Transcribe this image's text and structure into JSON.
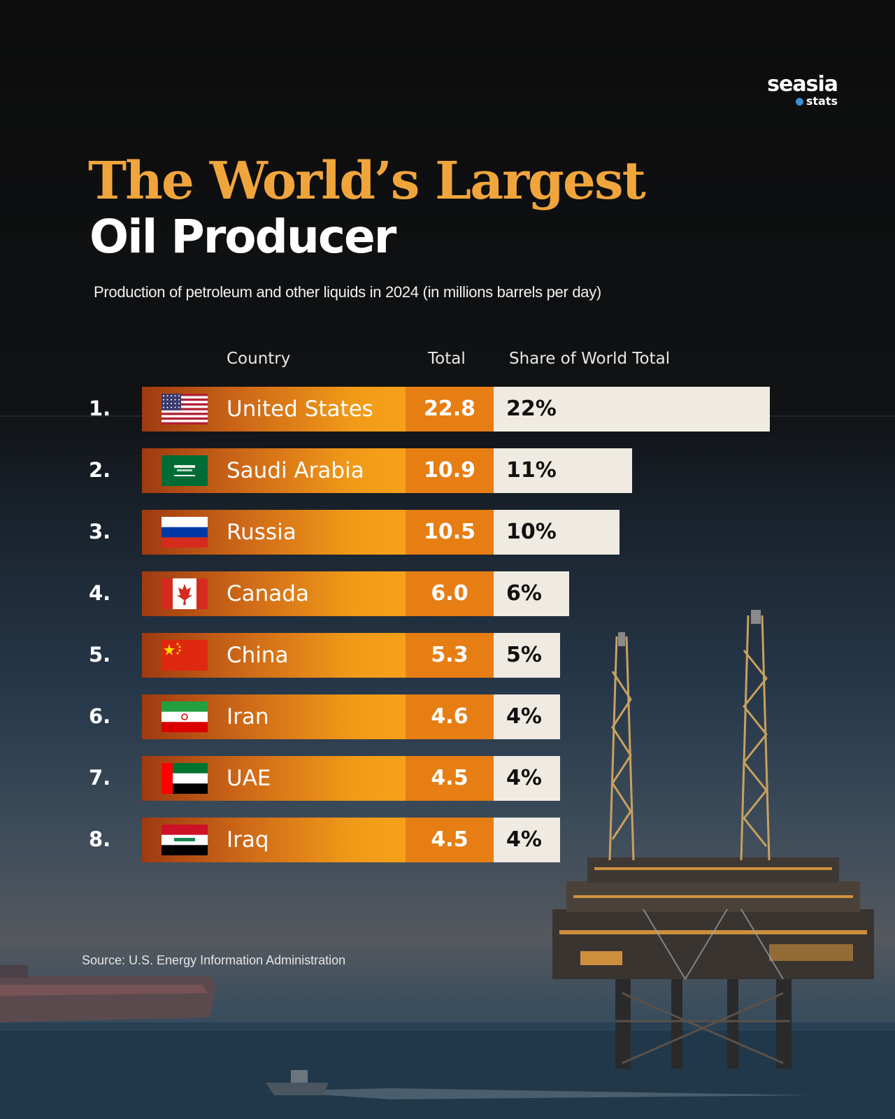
{
  "brand": {
    "name": "seasia",
    "sub": "stats"
  },
  "colors": {
    "title_accent": "#f0a53c",
    "bar_start": "#9e3a10",
    "bar_end": "#f7a11a",
    "total_bg": "#e67e14",
    "share_bg": "#efebe2"
  },
  "headers": {
    "country": "Country",
    "total": "Total",
    "share": "Share of World Total"
  },
  "source": "Source: U.S. Energy Information Administration",
  "chart_data": {
    "type": "table",
    "title": "The World’s Largest",
    "title_line2": "Oil Producer",
    "subtitle": "Production of petroleum and other liquids in 2024 (in millions barrels per day)",
    "columns": [
      "Country",
      "Total",
      "Share of World Total"
    ],
    "rows": [
      {
        "rank": "1.",
        "country": "United States",
        "flag": "us-flag",
        "total": "22.8",
        "share_label": "22%",
        "share": 22
      },
      {
        "rank": "2.",
        "country": "Saudi Arabia",
        "flag": "saudi-arabia-flag",
        "total": "10.9",
        "share_label": "11%",
        "share": 11
      },
      {
        "rank": "3.",
        "country": "Russia",
        "flag": "russia-flag",
        "total": "10.5",
        "share_label": "10%",
        "share": 10
      },
      {
        "rank": "4.",
        "country": "Canada",
        "flag": "canada-flag",
        "total": "6.0",
        "share_label": "6%",
        "share": 6
      },
      {
        "rank": "5.",
        "country": "China",
        "flag": "china-flag",
        "total": "5.3",
        "share_label": "5%",
        "share": 5
      },
      {
        "rank": "6.",
        "country": "Iran",
        "flag": "iran-flag",
        "total": "4.6",
        "share_label": "4%",
        "share": 4
      },
      {
        "rank": "7.",
        "country": "UAE",
        "flag": "uae-flag",
        "total": "4.5",
        "share_label": "4%",
        "share": 4
      },
      {
        "rank": "8.",
        "country": "Iraq",
        "flag": "iraq-flag",
        "total": "4.5",
        "share_label": "4%",
        "share": 4
      }
    ]
  }
}
